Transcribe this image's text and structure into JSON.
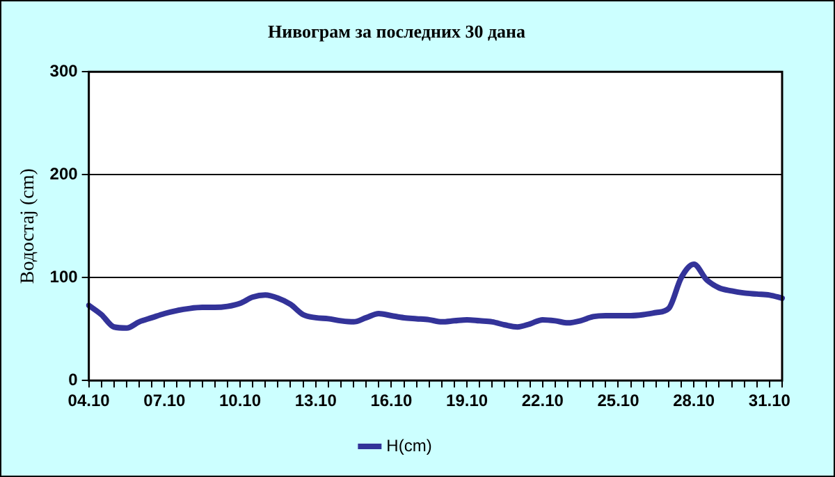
{
  "chart_data": {
    "type": "line",
    "title": "Нивограм за последних 30 дана",
    "ylabel": "Водостај (cm)",
    "categories": [
      "04.10",
      null,
      null,
      null,
      null,
      null,
      "07.10",
      null,
      null,
      null,
      null,
      null,
      "10.10",
      null,
      null,
      null,
      null,
      null,
      "13.10",
      null,
      null,
      null,
      null,
      null,
      "16.10",
      null,
      null,
      null,
      null,
      null,
      "19.10",
      null,
      null,
      null,
      null,
      null,
      "22.10",
      null,
      null,
      null,
      null,
      null,
      "25.10",
      null,
      null,
      null,
      null,
      null,
      "28.10",
      null,
      null,
      null,
      null,
      null,
      "31.10",
      null
    ],
    "series": [
      {
        "name": "H(cm)",
        "color": "#333399",
        "values": [
          73,
          64,
          52,
          51,
          57,
          61,
          65,
          68,
          70,
          71,
          71,
          72,
          75,
          81,
          83,
          80,
          74,
          64,
          61,
          60,
          58,
          57,
          61,
          65,
          63,
          61,
          60,
          59,
          57,
          58,
          59,
          58,
          57,
          54,
          52,
          55,
          59,
          58,
          56,
          58,
          62,
          63,
          63,
          63,
          64,
          66,
          70,
          100,
          113,
          98,
          90,
          87,
          85,
          84,
          83,
          80
        ]
      }
    ],
    "ylim": [
      0,
      300
    ],
    "yticks": [
      0,
      100,
      200,
      300
    ],
    "grid": "y",
    "legend": "bottom",
    "marker": "none",
    "line_style": "solid"
  }
}
